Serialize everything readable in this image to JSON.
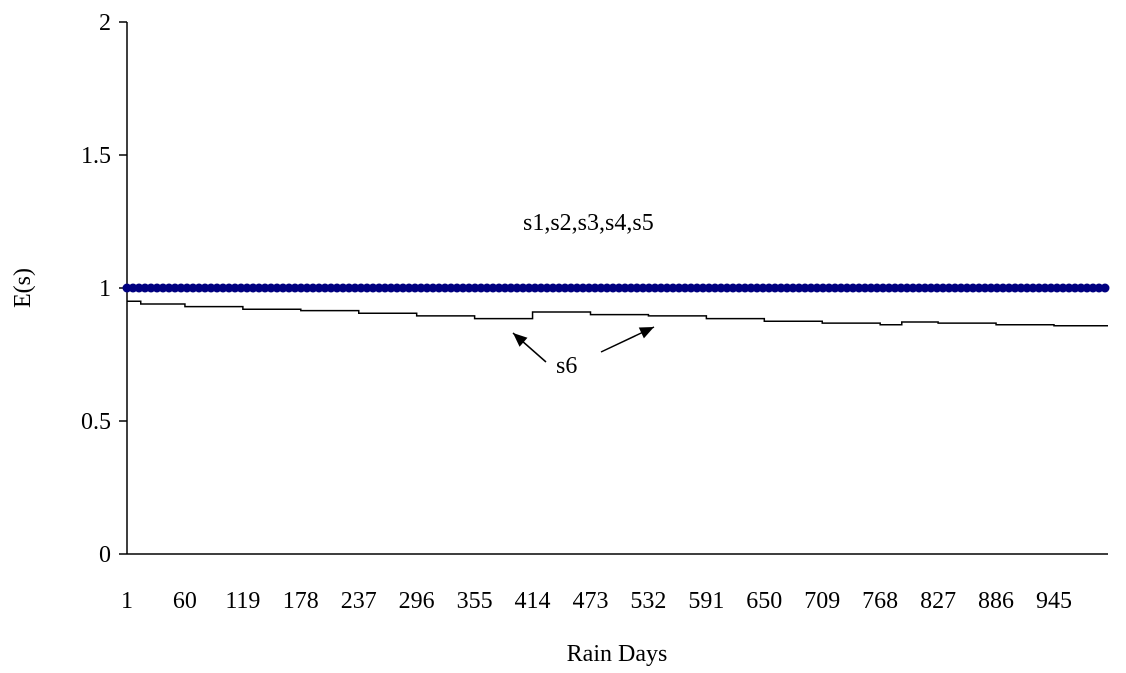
{
  "chart_data": {
    "type": "line",
    "xlabel": "Rain Days",
    "ylabel": "E(s)",
    "ylim": [
      0,
      2
    ],
    "yticks": [
      "0",
      "0.5",
      "1",
      "1.5",
      "2"
    ],
    "x_tick_labels": [
      "1",
      "60",
      "119",
      "178",
      "237",
      "296",
      "355",
      "414",
      "473",
      "532",
      "591",
      "650",
      "709",
      "768",
      "827",
      "886",
      "945"
    ],
    "xlim": [
      1,
      1000
    ],
    "grid": false,
    "legend": "none",
    "series": [
      {
        "name": "s1,s2,s3,s4,s5",
        "color": "#000080",
        "marker": "dot",
        "x": [
          1,
          1000
        ],
        "y": [
          1,
          1
        ]
      },
      {
        "name": "s6",
        "color": "#000000",
        "marker": "none",
        "step": true,
        "x": [
          1,
          15,
          60,
          119,
          178,
          237,
          296,
          355,
          414,
          473,
          532,
          591,
          650,
          709,
          768,
          790,
          827,
          886,
          945,
          1000
        ],
        "y": [
          0.95,
          0.94,
          0.93,
          0.92,
          0.915,
          0.905,
          0.895,
          0.885,
          0.91,
          0.9,
          0.895,
          0.885,
          0.875,
          0.868,
          0.862,
          0.872,
          0.868,
          0.862,
          0.858,
          0.858
        ]
      }
    ],
    "annotations": [
      {
        "text": "s1,s2,s3,s4,s5"
      },
      {
        "text": "s6"
      }
    ]
  }
}
